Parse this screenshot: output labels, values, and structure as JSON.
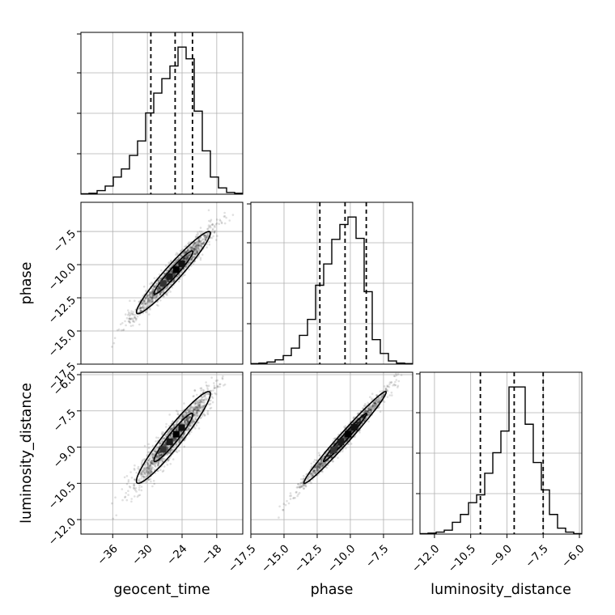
{
  "chart_data": {
    "type": "corner",
    "parameters": [
      {
        "name": "geocent_time",
        "label": "geocent_time",
        "range": [
          -41.5,
          -13.5
        ],
        "ticks": [
          -36,
          -30,
          -24,
          -18
        ],
        "tick_labels": [
          "−36",
          "−30",
          "−24",
          "−18"
        ],
        "quantiles": [
          -29.4,
          -25.2,
          -22.2
        ],
        "histogram": {
          "bin_edges": [
            -41.5,
            -40.1,
            -38.7,
            -37.3,
            -35.9,
            -34.5,
            -33.1,
            -31.7,
            -30.3,
            -28.9,
            -27.5,
            -26.1,
            -24.7,
            -23.3,
            -21.9,
            -20.5,
            -19.1,
            -17.7,
            -16.3,
            -14.9,
            -13.5
          ],
          "counts": [
            0.5,
            1,
            4,
            9,
            19,
            28,
            43,
            59,
            90,
            112,
            128,
            142,
            163,
            150,
            92,
            48,
            19,
            7,
            2,
            1
          ]
        }
      },
      {
        "name": "phase",
        "label": "phase",
        "range": [
          -17.5,
          -5.3
        ],
        "ticks": [
          -17.5,
          -15.0,
          -12.5,
          -10.0,
          -7.5
        ],
        "tick_labels": [
          "−17.5",
          "−15.0",
          "−12.5",
          "−10.0",
          "−7.5"
        ],
        "quantiles": [
          -12.3,
          -10.4,
          -8.8
        ],
        "histogram": {
          "bin_edges": [
            -17.5,
            -16.89,
            -16.28,
            -15.67,
            -15.06,
            -14.45,
            -13.84,
            -13.23,
            -12.62,
            -12.01,
            -11.4,
            -10.79,
            -10.18,
            -9.57,
            -8.96,
            -8.35,
            -7.74,
            -7.13,
            -6.52,
            -5.91,
            -5.3
          ],
          "counts": [
            0.5,
            1,
            2,
            4,
            8,
            15,
            27,
            42,
            74,
            94,
            117,
            131,
            138,
            118,
            68,
            23,
            10,
            3,
            1,
            0.5
          ]
        }
      },
      {
        "name": "luminosity_distance",
        "label": "luminosity_distance",
        "range": [
          -12.6,
          -5.9
        ],
        "ticks": [
          -12.0,
          -10.5,
          -9.0,
          -7.5,
          -6.0
        ],
        "tick_labels": [
          "−12.0",
          "−10.5",
          "−9.0",
          "−7.5",
          "−6.0"
        ],
        "quantiles": [
          -10.1,
          -8.7,
          -7.5
        ],
        "histogram": {
          "bin_edges": [
            -12.6,
            -12.265,
            -11.93,
            -11.595,
            -11.26,
            -10.925,
            -10.59,
            -10.255,
            -9.92,
            -9.585,
            -9.25,
            -8.915,
            -8.58,
            -8.245,
            -7.91,
            -7.575,
            -7.24,
            -6.905,
            -6.57,
            -6.235,
            -5.9
          ],
          "counts": [
            0.5,
            1,
            2,
            4,
            12,
            20,
            32,
            40,
            62,
            83,
            105,
            150,
            150,
            112,
            73,
            45,
            20,
            6,
            2,
            0.5
          ]
        }
      }
    ],
    "pairs": [
      {
        "x": "geocent_time",
        "y": "phase",
        "correlation": 0.96,
        "center": [
          -25.5,
          -10.6
        ],
        "spread": [
          3.2,
          1.55
        ]
      },
      {
        "x": "geocent_time",
        "y": "luminosity_distance",
        "correlation": 0.95,
        "center": [
          -25.5,
          -8.6
        ],
        "spread": [
          3.2,
          0.95
        ]
      },
      {
        "x": "phase",
        "y": "luminosity_distance",
        "correlation": 0.985,
        "center": [
          -10.4,
          -8.6
        ],
        "spread": [
          1.55,
          0.95
        ]
      }
    ],
    "grid": true,
    "legend": "none"
  }
}
